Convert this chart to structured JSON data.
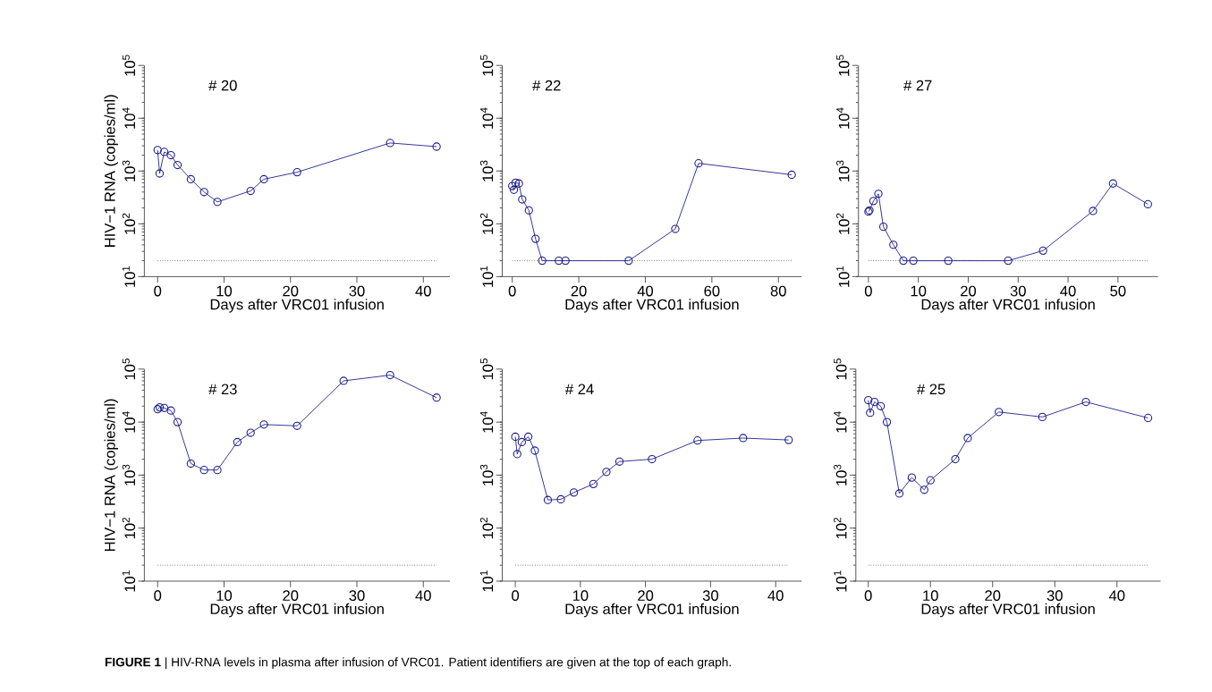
{
  "chart_data": [
    {
      "type": "line",
      "title": "# 20",
      "xlabel": "Days after VRC01 infusion",
      "ylabel": "HIV−1 RNA (copies/ml)",
      "log": true,
      "marker": "circle",
      "line_style": "solid",
      "color": "#1c1c8c",
      "x": [
        0,
        0.3,
        1,
        2,
        3,
        5,
        7,
        9,
        14,
        16,
        21,
        35,
        42
      ],
      "values": [
        2500,
        900,
        2300,
        2000,
        1300,
        700,
        400,
        260,
        420,
        700,
        950,
        3400,
        2900
      ],
      "xlim": [
        -2,
        44
      ],
      "xticks": [
        0,
        10,
        20,
        30,
        40
      ],
      "ylim": [
        10,
        100000
      ],
      "yticks": [
        {
          "value": 10,
          "label": "10$^{1}$"
        },
        {
          "value": 100,
          "label": "10$^{2}$"
        },
        {
          "value": 1000,
          "label": "10$^{3}$"
        },
        {
          "value": 10000,
          "label": "10$^{4}$"
        },
        {
          "value": 100000,
          "label": "10$^{5}$"
        }
      ],
      "ref_lines": [
        {
          "axis": "y",
          "value": 20,
          "color": "#333333",
          "line_style": "dotted"
        }
      ]
    },
    {
      "type": "line",
      "title": "# 22",
      "xlabel": "Days after VRC01 infusion",
      "log": true,
      "marker": "circle",
      "line_style": "solid",
      "color": "#1c1c8c",
      "x": [
        0,
        0.5,
        1,
        2,
        3,
        5,
        7,
        9,
        14,
        16,
        35,
        49,
        56,
        84
      ],
      "values": [
        520,
        440,
        600,
        580,
        290,
        180,
        52,
        20,
        20,
        20,
        20,
        80,
        1400,
        850
      ],
      "xlim": [
        -3,
        87
      ],
      "xticks": [
        0,
        20,
        40,
        60,
        80
      ],
      "ylim": [
        10,
        100000
      ],
      "yticks": [
        {
          "value": 10,
          "label": "10$^{1}$"
        },
        {
          "value": 100,
          "label": "10$^{2}$"
        },
        {
          "value": 1000,
          "label": "10$^{3}$"
        },
        {
          "value": 10000,
          "label": "10$^{4}$"
        },
        {
          "value": 100000,
          "label": "10$^{5}$"
        }
      ],
      "ref_lines": [
        {
          "axis": "y",
          "value": 20,
          "color": "#333333",
          "line_style": "dotted"
        }
      ]
    },
    {
      "type": "line",
      "title": "# 27",
      "xlabel": "Days after VRC01 infusion",
      "log": true,
      "marker": "circle",
      "line_style": "solid",
      "color": "#1c1c8c",
      "x": [
        0,
        0.2,
        1,
        2,
        3,
        5,
        7,
        9,
        16,
        28,
        35,
        45,
        49,
        56
      ],
      "values": [
        170,
        180,
        270,
        370,
        88,
        40,
        20,
        20,
        20,
        20,
        31,
        175,
        580,
        235
      ],
      "xlim": [
        -2,
        58
      ],
      "xticks": [
        0,
        10,
        20,
        30,
        40,
        50
      ],
      "ylim": [
        10,
        100000
      ],
      "yticks": [
        {
          "value": 10,
          "label": "10$^{1}$"
        },
        {
          "value": 100,
          "label": "10$^{2}$"
        },
        {
          "value": 1000,
          "label": "10$^{3}$"
        },
        {
          "value": 10000,
          "label": "10$^{4}$"
        },
        {
          "value": 100000,
          "label": "10$^{5}$"
        }
      ],
      "ref_lines": [
        {
          "axis": "y",
          "value": 20,
          "color": "#333333",
          "line_style": "dotted"
        }
      ]
    },
    {
      "type": "line",
      "title": "# 23",
      "xlabel": "Days after VRC01 infusion",
      "ylabel": "HIV−1 RNA (copies/ml)",
      "log": true,
      "marker": "circle",
      "line_style": "solid",
      "color": "#1c1c8c",
      "x": [
        0,
        0.3,
        1,
        2,
        3,
        5,
        7,
        9,
        12,
        14,
        16,
        21,
        28,
        35,
        42
      ],
      "values": [
        17500,
        19000,
        18500,
        16500,
        10000,
        1650,
        1250,
        1250,
        4200,
        6300,
        9000,
        8500,
        60000,
        77000,
        29000
      ],
      "xlim": [
        -2,
        44
      ],
      "xticks": [
        0,
        10,
        20,
        30,
        40
      ],
      "ylim": [
        10,
        100000
      ],
      "yticks": [
        {
          "value": 10,
          "label": "10$^{1}$"
        },
        {
          "value": 100,
          "label": "10$^{2}$"
        },
        {
          "value": 1000,
          "label": "10$^{3}$"
        },
        {
          "value": 10000,
          "label": "10$^{4}$"
        },
        {
          "value": 100000,
          "label": "10$^{5}$"
        }
      ],
      "ref_lines": [
        {
          "axis": "y",
          "value": 20,
          "color": "#333333",
          "line_style": "dotted"
        }
      ]
    },
    {
      "type": "line",
      "title": "# 24",
      "xlabel": "Days after VRC01 infusion",
      "log": true,
      "marker": "circle",
      "line_style": "solid",
      "color": "#1c1c8c",
      "x": [
        0,
        0.3,
        1,
        2,
        3,
        5,
        7,
        9,
        12,
        14,
        16,
        21,
        28,
        35,
        42
      ],
      "values": [
        5300,
        2500,
        4200,
        5300,
        2900,
        340,
        350,
        470,
        680,
        1150,
        1800,
        2000,
        4500,
        5000,
        4600
      ],
      "xlim": [
        -2,
        44
      ],
      "xticks": [
        0,
        10,
        20,
        30,
        40
      ],
      "ylim": [
        10,
        100000
      ],
      "yticks": [
        {
          "value": 10,
          "label": "10$^{1}$"
        },
        {
          "value": 100,
          "label": "10$^{2}$"
        },
        {
          "value": 1000,
          "label": "10$^{3}$"
        },
        {
          "value": 10000,
          "label": "10$^{4}$"
        },
        {
          "value": 100000,
          "label": "10$^{5}$"
        }
      ],
      "ref_lines": [
        {
          "axis": "y",
          "value": 20,
          "color": "#333333",
          "line_style": "dotted"
        }
      ]
    },
    {
      "type": "line",
      "title": "# 25",
      "xlabel": "Days after VRC01 infusion",
      "log": true,
      "marker": "circle",
      "line_style": "solid",
      "color": "#1c1c8c",
      "x": [
        0,
        0.3,
        1,
        2,
        3,
        5,
        7,
        9,
        10,
        14,
        16,
        21,
        28,
        35,
        45
      ],
      "values": [
        26000,
        15000,
        24000,
        20000,
        10000,
        450,
        900,
        530,
        800,
        2000,
        5000,
        15500,
        12500,
        24000,
        12000
      ],
      "xlim": [
        -2,
        47
      ],
      "xticks": [
        0,
        10,
        20,
        30,
        40
      ],
      "ylim": [
        10,
        100000
      ],
      "yticks": [
        {
          "value": 10,
          "label": "10$^{1}$"
        },
        {
          "value": 100,
          "label": "10$^{2}$"
        },
        {
          "value": 1000,
          "label": "10$^{3}$"
        },
        {
          "value": 10000,
          "label": "10$^{4}$"
        },
        {
          "value": 100000,
          "label": "10$^{5}$"
        }
      ],
      "ref_lines": [
        {
          "axis": "y",
          "value": 20,
          "color": "#333333",
          "line_style": "dotted"
        }
      ],
      "annotations": [
        "**FIGURE 1** | HIV-RNA levels in plasma after infusion of VRC01. Patient identifiers are given at the top of each graph."
      ]
    }
  ]
}
